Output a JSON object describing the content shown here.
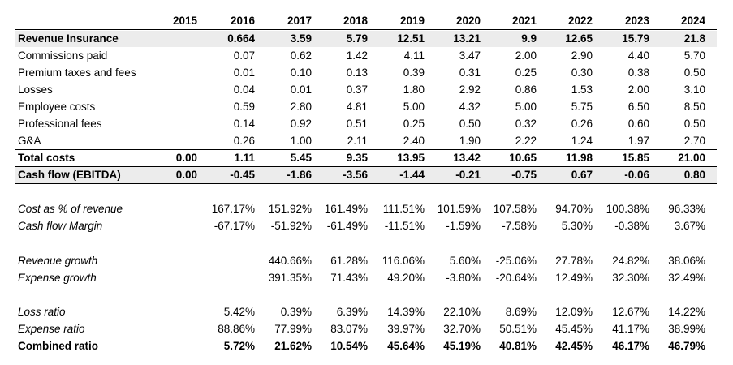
{
  "years": [
    "2015",
    "2016",
    "2017",
    "2018",
    "2019",
    "2020",
    "2021",
    "2022",
    "2023",
    "2024"
  ],
  "rows": [
    {
      "label": "Revenue Insurance",
      "values": [
        "",
        "0.664",
        "3.59",
        "5.79",
        "12.51",
        "13.21",
        "9.9",
        "12.65",
        "15.79",
        "21.8"
      ]
    },
    {
      "label": "Commissions paid",
      "values": [
        "",
        "0.07",
        "0.62",
        "1.42",
        "4.11",
        "3.47",
        "2.00",
        "2.90",
        "4.40",
        "5.70"
      ]
    },
    {
      "label": "Premium taxes and fees",
      "values": [
        "",
        "0.01",
        "0.10",
        "0.13",
        "0.39",
        "0.31",
        "0.25",
        "0.30",
        "0.38",
        "0.50"
      ]
    },
    {
      "label": "Losses",
      "values": [
        "",
        "0.04",
        "0.01",
        "0.37",
        "1.80",
        "2.92",
        "0.86",
        "1.53",
        "2.00",
        "3.10"
      ]
    },
    {
      "label": "Employee costs",
      "values": [
        "",
        "0.59",
        "2.80",
        "4.81",
        "5.00",
        "4.32",
        "5.00",
        "5.75",
        "6.50",
        "8.50"
      ]
    },
    {
      "label": "Professional fees",
      "values": [
        "",
        "0.14",
        "0.92",
        "0.51",
        "0.25",
        "0.50",
        "0.32",
        "0.26",
        "0.60",
        "0.50"
      ]
    },
    {
      "label": "G&A",
      "values": [
        "",
        "0.26",
        "1.00",
        "2.11",
        "2.40",
        "1.90",
        "2.22",
        "1.24",
        "1.97",
        "2.70"
      ]
    },
    {
      "label": "Total costs",
      "values": [
        "0.00",
        "1.11",
        "5.45",
        "9.35",
        "13.95",
        "13.42",
        "10.65",
        "11.98",
        "15.85",
        "21.00"
      ]
    },
    {
      "label": "Cash flow (EBITDA)",
      "values": [
        "0.00",
        "-0.45",
        "-1.86",
        "-3.56",
        "-1.44",
        "-0.21",
        "-0.75",
        "0.67",
        "-0.06",
        "0.80"
      ]
    },
    {
      "label": "Cost as % of revenue",
      "values": [
        "",
        "167.17%",
        "151.92%",
        "161.49%",
        "111.51%",
        "101.59%",
        "107.58%",
        "94.70%",
        "100.38%",
        "96.33%"
      ]
    },
    {
      "label": "Cash flow Margin",
      "values": [
        "",
        "-67.17%",
        "-51.92%",
        "-61.49%",
        "-11.51%",
        "-1.59%",
        "-7.58%",
        "5.30%",
        "-0.38%",
        "3.67%"
      ]
    },
    {
      "label": "Revenue growth",
      "values": [
        "",
        "",
        "440.66%",
        "61.28%",
        "116.06%",
        "5.60%",
        "-25.06%",
        "27.78%",
        "24.82%",
        "38.06%"
      ]
    },
    {
      "label": "Expense growth",
      "values": [
        "",
        "",
        "391.35%",
        "71.43%",
        "49.20%",
        "-3.80%",
        "-20.64%",
        "12.49%",
        "32.30%",
        "32.49%"
      ]
    },
    {
      "label": "Loss ratio",
      "values": [
        "",
        "5.42%",
        "0.39%",
        "6.39%",
        "14.39%",
        "22.10%",
        "8.69%",
        "12.09%",
        "12.67%",
        "14.22%"
      ]
    },
    {
      "label": "Expense ratio",
      "values": [
        "",
        "88.86%",
        "77.99%",
        "83.07%",
        "39.97%",
        "32.70%",
        "50.51%",
        "45.45%",
        "41.17%",
        "38.99%"
      ]
    },
    {
      "label": "Combined ratio",
      "values": [
        "",
        "5.72%",
        "21.62%",
        "10.54%",
        "45.64%",
        "45.19%",
        "40.81%",
        "42.45%",
        "46.17%",
        "46.79%"
      ]
    }
  ]
}
